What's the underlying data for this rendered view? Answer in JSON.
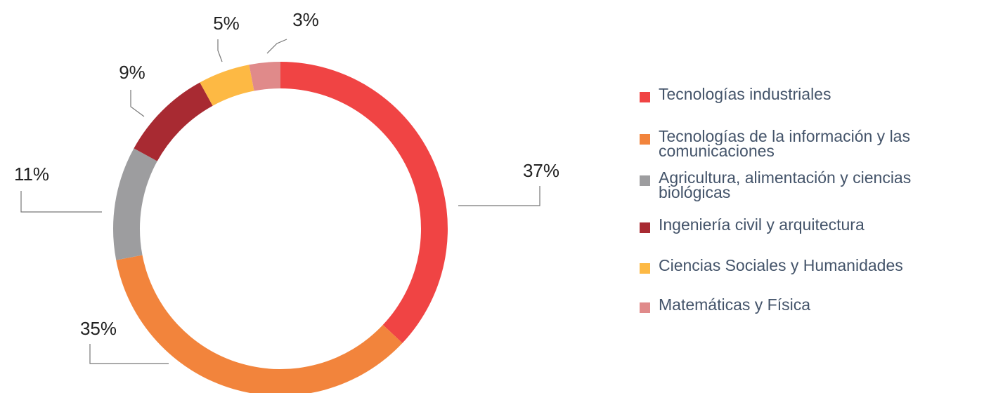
{
  "chart_data": {
    "type": "donut",
    "categories": [
      "Tecnologías industriales",
      "Tecnologías de la información y las comunicaciones",
      "Agricultura, alimentación y ciencias biológicas",
      "Ingeniería civil y arquitectura",
      "Ciencias Sociales y Humanidades",
      "Matemáticas y Física"
    ],
    "values": [
      37,
      35,
      11,
      9,
      5,
      3
    ],
    "value_labels": [
      "37%",
      "35%",
      "11%",
      "9%",
      "5%",
      "3%"
    ],
    "colors": [
      "#f04444",
      "#f2843c",
      "#9d9d9f",
      "#a82a32",
      "#fdb944",
      "#e08a8a"
    ],
    "legend": "right"
  }
}
